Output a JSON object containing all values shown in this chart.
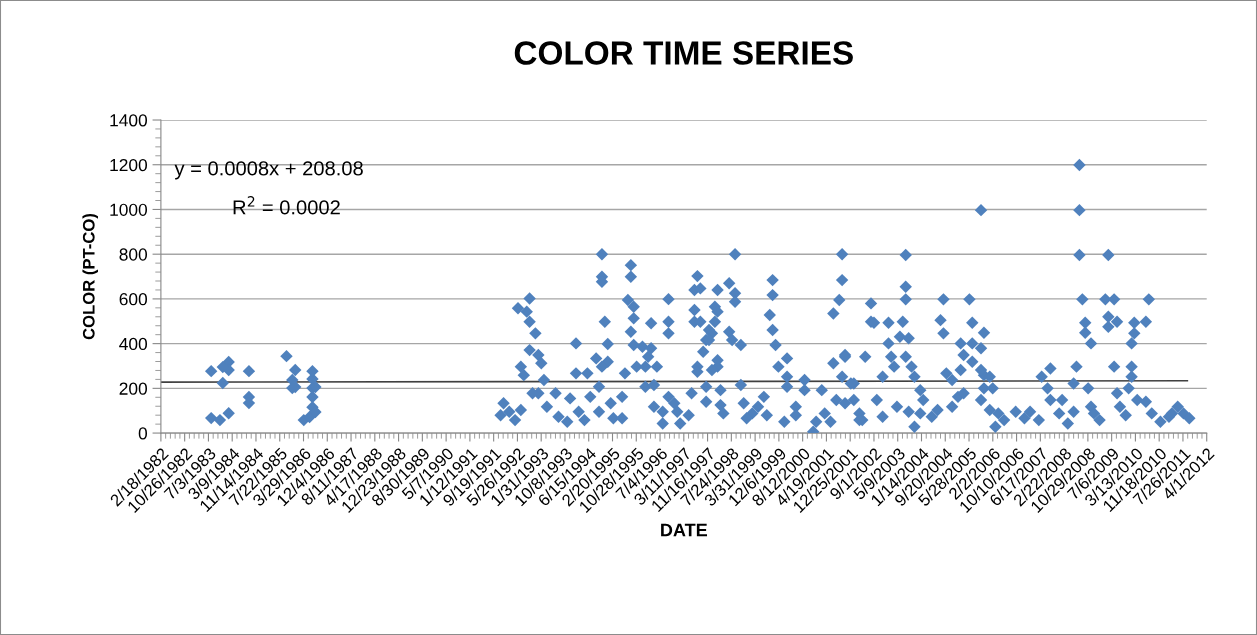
{
  "chart_data": {
    "type": "scatter",
    "title": "COLOR TIME SERIES",
    "xlabel": "DATE",
    "ylabel": "COLOR (PT-CO)",
    "annotations": [
      "y = 0.0008x + 208.08",
      "R$^{2}$ = 0.0002"
    ],
    "xlim": [
      "1982-02-18",
      "2012-04-01"
    ],
    "xticks": [
      {
        "value": "1982-02-18",
        "label": "2/18/1982"
      },
      {
        "value": "1982-10-26",
        "label": "10/26/1982"
      },
      {
        "value": "1983-07-03",
        "label": "7/3/1983"
      },
      {
        "value": "1984-03-09",
        "label": "3/9/1984"
      },
      {
        "value": "1984-11-14",
        "label": "11/14/1984"
      },
      {
        "value": "1985-07-22",
        "label": "7/22/1985"
      },
      {
        "value": "1986-03-29",
        "label": "3/29/1986"
      },
      {
        "value": "1986-12-04",
        "label": "12/4/1986"
      },
      {
        "value": "1987-08-11",
        "label": "8/11/1987"
      },
      {
        "value": "1988-04-17",
        "label": "4/17/1988"
      },
      {
        "value": "1988-12-23",
        "label": "12/23/1988"
      },
      {
        "value": "1989-08-30",
        "label": "8/30/1989"
      },
      {
        "value": "1990-05-07",
        "label": "5/7/1990"
      },
      {
        "value": "1991-01-12",
        "label": "1/12/1991"
      },
      {
        "value": "1991-09-19",
        "label": "9/19/1991"
      },
      {
        "value": "1992-05-26",
        "label": "5/26/1992"
      },
      {
        "value": "1993-01-31",
        "label": "1/31/1993"
      },
      {
        "value": "1993-10-08",
        "label": "10/8/1993"
      },
      {
        "value": "1994-06-15",
        "label": "6/15/1994"
      },
      {
        "value": "1995-02-20",
        "label": "2/20/1995"
      },
      {
        "value": "1995-10-28",
        "label": "10/28/1995"
      },
      {
        "value": "1996-07-04",
        "label": "7/4/1996"
      },
      {
        "value": "1997-03-11",
        "label": "3/11/1997"
      },
      {
        "value": "1997-11-16",
        "label": "11/16/1997"
      },
      {
        "value": "1998-07-24",
        "label": "7/24/1998"
      },
      {
        "value": "1999-03-31",
        "label": "3/31/1999"
      },
      {
        "value": "1999-12-06",
        "label": "12/6/1999"
      },
      {
        "value": "2000-08-12",
        "label": "8/12/2000"
      },
      {
        "value": "2001-04-19",
        "label": "4/19/2001"
      },
      {
        "value": "2001-12-25",
        "label": "12/25/2001"
      },
      {
        "value": "2002-09-01",
        "label": "9/1/2002"
      },
      {
        "value": "2003-05-09",
        "label": "5/9/2003"
      },
      {
        "value": "2004-01-14",
        "label": "1/14/2004"
      },
      {
        "value": "2004-09-20",
        "label": "9/20/2004"
      },
      {
        "value": "2005-05-28",
        "label": "5/28/2005"
      },
      {
        "value": "2006-02-02",
        "label": "2/2/2006"
      },
      {
        "value": "2006-10-10",
        "label": "10/10/2006"
      },
      {
        "value": "2007-06-17",
        "label": "6/17/2007"
      },
      {
        "value": "2008-02-22",
        "label": "2/22/2008"
      },
      {
        "value": "2008-10-29",
        "label": "10/29/2008"
      },
      {
        "value": "2009-07-06",
        "label": "7/6/2009"
      },
      {
        "value": "2010-03-13",
        "label": "3/13/2010"
      },
      {
        "value": "2010-11-18",
        "label": "11/18/2010"
      },
      {
        "value": "2011-07-26",
        "label": "7/26/2011"
      },
      {
        "value": "2012-04-01",
        "label": "4/1/2012"
      }
    ],
    "ylim": [
      0,
      1400
    ],
    "yticks": [
      0,
      200,
      400,
      600,
      800,
      1000,
      1200,
      1400
    ],
    "grid": "y",
    "series": [
      {
        "marker": "diamond",
        "color": "#4f81bd",
        "x": [
          "1983-08",
          "1983-08",
          "1983-11",
          "1984-02",
          "1984-02",
          "1984-02",
          "1983-12",
          "1983-12",
          "1984-09",
          "1984-09",
          "1984-09",
          "1985-10",
          "1985-12",
          "1985-12",
          "1986-01",
          "1986-01",
          "1986-04",
          "1986-06",
          "1986-07",
          "1986-07",
          "1986-07",
          "1986-07",
          "1986-07",
          "1986-08",
          "1986-08",
          "1992-01",
          "1992-03",
          "1992-05",
          "1992-07",
          "1991-12",
          "1992-06",
          "1992-10",
          "1992-09",
          "1992-10",
          "1992-12",
          "1992-10",
          "1993-01",
          "1993-01",
          "1993-02",
          "1992-07",
          "1992-08",
          "1993-03",
          "1992-11",
          "1993-07",
          "1993-04",
          "1993-08",
          "1993-11",
          "1994-03",
          "1994-05",
          "1993-12",
          "1994-02",
          "1994-02",
          "1994-06",
          "1994-09",
          "1994-10",
          "1994-11",
          "1994-11",
          "1994-11",
          "1994-12",
          "1995-01",
          "1995-01",
          "1994-11",
          "1994-07",
          "1994-10",
          "1995-02",
          "1995-03",
          "1995-06",
          "1995-06",
          "1995-07",
          "1995-09",
          "1995-09",
          "1995-09",
          "1995-08",
          "1995-10",
          "1995-10",
          "1995-10",
          "1996-01",
          "1996-04",
          "1996-04",
          "1996-03",
          "1995-11",
          "1996-02",
          "1996-02",
          "1996-06",
          "1996-05",
          "1996-05",
          "1996-08",
          "1996-08",
          "1996-10",
          "1996-10",
          "1996-10",
          "1996-12",
          "1997-01",
          "1997-02",
          "1997-05",
          "1996-10",
          "1997-06",
          "1997-07",
          "1997-07",
          "1997-08",
          "1997-08",
          "1997-08",
          "1997-07",
          "1997-09",
          "1997-09",
          "1997-12",
          "1997-11",
          "1997-10",
          "1997-11",
          "1997-11",
          "1998-02",
          "1998-02",
          "1998-03",
          "1998-03",
          "1998-03",
          "1998-01",
          "1997-12",
          "1998-03",
          "1998-01",
          "1998-04",
          "1998-04",
          "1998-05",
          "1998-07",
          "1998-07",
          "1998-09",
          "1998-09",
          "1998-09",
          "1998-08",
          "1998-11",
          "1998-11",
          "1998-12",
          "1999-03",
          "1999-05",
          "1999-07",
          "1999-08",
          "1999-01",
          "1999-10",
          "1999-10",
          "1999-09",
          "1999-10",
          "1999-11",
          "1999-12",
          "2000-03",
          "2000-03",
          "2000-03",
          "2000-02",
          "2000-06",
          "2000-06",
          "2000-09",
          "2000-09",
          "2000-12",
          "2001-01",
          "2001-04",
          "2001-06",
          "2001-03",
          "2001-09",
          "2001-10",
          "2001-10",
          "2001-10",
          "2001-07",
          "2001-07",
          "2001-11",
          "2001-08",
          "2001-11",
          "2002-02",
          "2002-04",
          "2002-05",
          "2001-11",
          "2002-01",
          "2002-02",
          "2002-04",
          "2002-08",
          "2002-08",
          "2002-09",
          "2002-06",
          "2002-10",
          "2002-12",
          "2002-12",
          "2003-02",
          "2003-02",
          "2003-03",
          "2003-04",
          "2003-05",
          "2003-07",
          "2003-06",
          "2003-08",
          "2003-08",
          "2003-08",
          "2003-08",
          "2003-09",
          "2003-10",
          "2003-11",
          "2003-09",
          "2003-11",
          "2004-01",
          "2004-02",
          "2004-01",
          "2004-05",
          "2004-07",
          "2004-12",
          "2004-12",
          "2005-02",
          "2004-09",
          "2004-08",
          "2004-09",
          "2004-10",
          "2005-03",
          "2005-03",
          "2005-04",
          "2005-06",
          "2005-07",
          "2005-07",
          "2005-07",
          "2005-04",
          "2005-11",
          "2005-11",
          "2005-11",
          "2005-10",
          "2005-10",
          "2005-10",
          "2005-10",
          "2006-01",
          "2006-01",
          "2006-02",
          "2006-03",
          "2006-04",
          "2006-06",
          "2006-10",
          "2007-01",
          "2007-03",
          "2007-06",
          "2007-07",
          "2007-10",
          "2007-09",
          "2007-10",
          "2008-01",
          "2008-02",
          "2008-04",
          "2008-06",
          "2008-06",
          "2008-07",
          "2008-08",
          "2008-08",
          "2008-08",
          "2008-09",
          "2008-10",
          "2008-10",
          "2008-12",
          "2008-11",
          "2008-12",
          "2009-03",
          "2009-01",
          "2009-06",
          "2009-05",
          "2009-08",
          "2009-06",
          "2009-06",
          "2009-09",
          "2009-08",
          "2009-09",
          "2009-10",
          "2009-12",
          "2010-02",
          "2010-02",
          "2010-02",
          "2010-03",
          "2010-03",
          "2010-01",
          "2010-04",
          "2010-08",
          "2010-07",
          "2010-07",
          "2010-09",
          "2010-12",
          "2011-03",
          "2011-06",
          "2011-08",
          "2011-10",
          "2011-04"
        ],
        "values": [
          277,
          67,
          58,
          89,
          318,
          282,
          295,
          224,
          277,
          161,
          134,
          344,
          237,
          201,
          282,
          206,
          58,
          72,
          116,
          161,
          242,
          277,
          201,
          94,
          206,
          133,
          95,
          58,
          103,
          80,
          558,
          602,
          543,
          498,
          446,
          371,
          349,
          178,
          312,
          297,
          259,
          237,
          178,
          178,
          118,
          73,
          51,
          95,
          58,
          155,
          401,
          267,
          267,
          334,
          207,
          800,
          699,
          677,
          498,
          398,
          319,
          297,
          162,
          95,
          133,
          66,
          66,
          162,
          267,
          751,
          699,
          453,
          595,
          565,
          394,
          513,
          386,
          379,
          491,
          341,
          297,
          297,
          207,
          297,
          215,
          118,
          95,
          43,
          162,
          498,
          446,
          133,
          95,
          43,
          80,
          599,
          178,
          550,
          498,
          702,
          297,
          274,
          640,
          647,
          498,
          461,
          416,
          364,
          207,
          140,
          565,
          498,
          543,
          640,
          297,
          446,
          416,
          326,
          282,
          192,
          125,
          88,
          670,
          453,
          800,
          625,
          587,
          416,
          394,
          215,
          133,
          88,
          118,
          162,
          80,
          66,
          684,
          617,
          528,
          461,
          394,
          297,
          334,
          252,
          207,
          51,
          118,
          80,
          237,
          192,
          6,
          51,
          88,
          51,
          192,
          595,
          684,
          800,
          252,
          535,
          312,
          349,
          148,
          133,
          222,
          88,
          58,
          341,
          222,
          148,
          58,
          580,
          498,
          493,
          341,
          148,
          73,
          252,
          493,
          401,
          341,
          297,
          118,
          498,
          431,
          654,
          796,
          598,
          341,
          424,
          297,
          252,
          95,
          28,
          192,
          148,
          88,
          73,
          103,
          118,
          237,
          162,
          598,
          505,
          446,
          267,
          282,
          401,
          178,
          598,
          493,
          401,
          319,
          349,
          449,
          259,
          200,
          379,
          282,
          997,
          148,
          252,
          103,
          200,
          28,
          88,
          58,
          95,
          66,
          95,
          58,
          252,
          289,
          200,
          148,
          88,
          148,
          43,
          95,
          222,
          297,
          1199,
          997,
          796,
          598,
          493,
          449,
          401,
          200,
          118,
          58,
          88,
          796,
          598,
          598,
          520,
          475,
          498,
          297,
          178,
          118,
          80,
          401,
          297,
          252,
          446,
          493,
          200,
          148,
          598,
          498,
          140,
          88,
          51,
          73,
          118,
          88,
          66,
          88
        ]
      },
      {
        "type": "line",
        "color": "#404040",
        "x": [
          "1982-02-18",
          "2011-09-10"
        ],
        "values": [
          228,
          234
        ]
      }
    ]
  }
}
